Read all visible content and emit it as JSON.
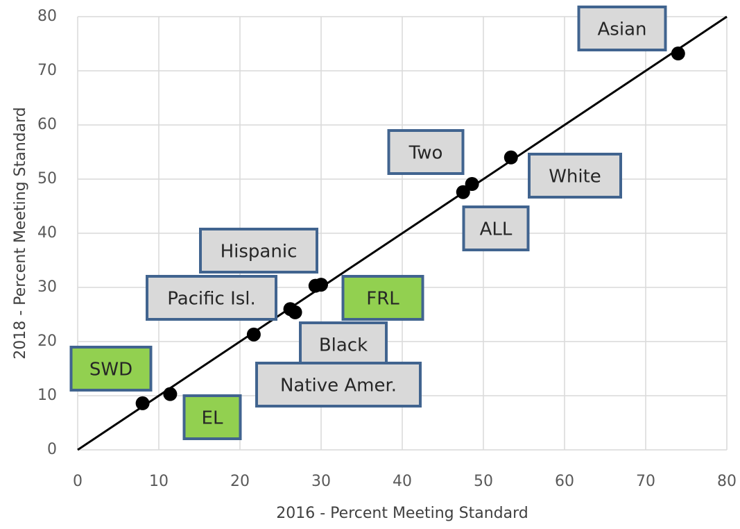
{
  "chart_data": {
    "type": "scatter",
    "x_label": "2016 - Percent Meeting Standard",
    "y_label": "2018 - Percent Meeting Standard",
    "series": [
      {
        "color": "#000000",
        "labels": [
          "Asian",
          "White",
          "Two",
          "ALL",
          "FRL",
          "Hispanic",
          "Pacific Isl.",
          "Black",
          "Native Amer.",
          "EL",
          "SWD"
        ],
        "label_fills": [
          "#d9d9d9",
          "#d9d9d9",
          "#d9d9d9",
          "#d9d9d9",
          "#92d050",
          "#d9d9d9",
          "#d9d9d9",
          "#d9d9d9",
          "#d9d9d9",
          "#92d050",
          "#92d050"
        ],
        "x": [
          74.0,
          53.4,
          48.6,
          47.5,
          30.0,
          29.3,
          26.2,
          26.8,
          21.7,
          11.4,
          8.0
        ],
        "values": [
          73.2,
          54.0,
          49.1,
          47.6,
          30.5,
          30.3,
          26.0,
          25.4,
          21.3,
          10.3,
          8.6
        ]
      }
    ],
    "reference_line": {
      "x": [
        0,
        80
      ],
      "y": [
        0,
        80
      ],
      "color": "#000000"
    },
    "xlim": [
      0,
      80
    ],
    "xticks": [
      0,
      10,
      20,
      30,
      40,
      50,
      60,
      70,
      80
    ],
    "ylim": [
      0,
      80
    ],
    "yticks": [
      0,
      10,
      20,
      30,
      40,
      50,
      60,
      70,
      80
    ],
    "grid": true
  }
}
